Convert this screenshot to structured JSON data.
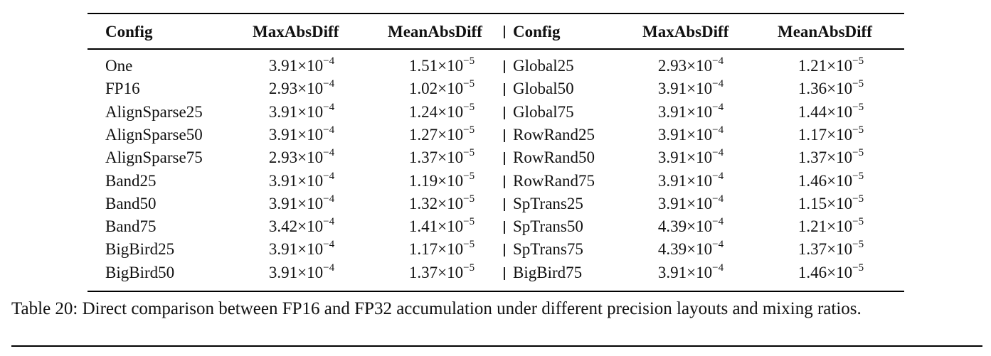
{
  "table": {
    "headers": [
      "Config",
      "MaxAbsDiff",
      "MeanAbsDiff",
      "Config",
      "MaxAbsDiff",
      "MeanAbsDiff"
    ],
    "rows": [
      {
        "config_left": "One",
        "max_left": "3.91",
        "max_left_exp": "−4",
        "mean_left": "1.51",
        "mean_left_exp": "−5",
        "config_right": "Global25",
        "max_right": "2.93",
        "max_right_exp": "−4",
        "mean_right": "1.21",
        "mean_right_exp": "−5"
      },
      {
        "config_left": "FP16",
        "max_left": "2.93",
        "max_left_exp": "−4",
        "mean_left": "1.02",
        "mean_left_exp": "−5",
        "config_right": "Global50",
        "max_right": "3.91",
        "max_right_exp": "−4",
        "mean_right": "1.36",
        "mean_right_exp": "−5"
      },
      {
        "config_left": "AlignSparse25",
        "max_left": "3.91",
        "max_left_exp": "−4",
        "mean_left": "1.24",
        "mean_left_exp": "−5",
        "config_right": "Global75",
        "max_right": "3.91",
        "max_right_exp": "−4",
        "mean_right": "1.44",
        "mean_right_exp": "−5"
      },
      {
        "config_left": "AlignSparse50",
        "max_left": "3.91",
        "max_left_exp": "−4",
        "mean_left": "1.27",
        "mean_left_exp": "−5",
        "config_right": "RowRand25",
        "max_right": "3.91",
        "max_right_exp": "−4",
        "mean_right": "1.17",
        "mean_right_exp": "−5"
      },
      {
        "config_left": "AlignSparse75",
        "max_left": "2.93",
        "max_left_exp": "−4",
        "mean_left": "1.37",
        "mean_left_exp": "−5",
        "config_right": "RowRand50",
        "max_right": "3.91",
        "max_right_exp": "−4",
        "mean_right": "1.37",
        "mean_right_exp": "−5"
      },
      {
        "config_left": "Band25",
        "max_left": "3.91",
        "max_left_exp": "−4",
        "mean_left": "1.19",
        "mean_left_exp": "−5",
        "config_right": "RowRand75",
        "max_right": "3.91",
        "max_right_exp": "−4",
        "mean_right": "1.46",
        "mean_right_exp": "−5"
      },
      {
        "config_left": "Band50",
        "max_left": "3.91",
        "max_left_exp": "−4",
        "mean_left": "1.32",
        "mean_left_exp": "−5",
        "config_right": "SpTrans25",
        "max_right": "3.91",
        "max_right_exp": "−4",
        "mean_right": "1.15",
        "mean_right_exp": "−5"
      },
      {
        "config_left": "Band75",
        "max_left": "3.42",
        "max_left_exp": "−4",
        "mean_left": "1.41",
        "mean_left_exp": "−5",
        "config_right": "SpTrans50",
        "max_right": "4.39",
        "max_right_exp": "−4",
        "mean_right": "1.21",
        "mean_right_exp": "−5"
      },
      {
        "config_left": "BigBird25",
        "max_left": "3.91",
        "max_left_exp": "−4",
        "mean_left": "1.17",
        "mean_left_exp": "−5",
        "config_right": "SpTrans75",
        "max_right": "4.39",
        "max_right_exp": "−4",
        "mean_right": "1.37",
        "mean_right_exp": "−5"
      },
      {
        "config_left": "BigBird50",
        "max_left": "3.91",
        "max_left_exp": "−4",
        "mean_left": "1.37",
        "mean_left_exp": "−5",
        "config_right": "BigBird75",
        "max_right": "3.91",
        "max_right_exp": "−4",
        "mean_right": "1.46",
        "mean_right_exp": "−5"
      }
    ],
    "times_ten": "×10"
  },
  "caption": "Table 20: Direct comparison between FP16 and FP32 accumulation under different precision layouts and mixing ratios."
}
